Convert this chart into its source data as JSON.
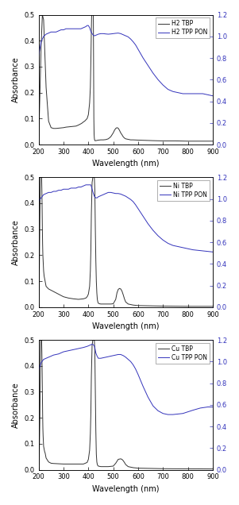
{
  "panels": [
    {
      "label1": "H2 TBP",
      "label2": "H2 TPP PON",
      "black_x": [
        200,
        210,
        215,
        220,
        230,
        240,
        250,
        260,
        270,
        280,
        290,
        300,
        310,
        320,
        330,
        340,
        350,
        360,
        370,
        375,
        380,
        385,
        390,
        395,
        400,
        405,
        408,
        410,
        412,
        413,
        414,
        415,
        416,
        417,
        418,
        419,
        420,
        421,
        422,
        423,
        424,
        425,
        426,
        427,
        428,
        429,
        430,
        435,
        440,
        450,
        460,
        470,
        480,
        490,
        500,
        505,
        510,
        515,
        520,
        525,
        530,
        535,
        540,
        545,
        550,
        560,
        570,
        580,
        600,
        630,
        660,
        700,
        750,
        800,
        850,
        900
      ],
      "black_y": [
        0.0,
        0.38,
        0.5,
        0.48,
        0.22,
        0.09,
        0.065,
        0.062,
        0.062,
        0.063,
        0.064,
        0.065,
        0.067,
        0.068,
        0.069,
        0.07,
        0.071,
        0.075,
        0.08,
        0.083,
        0.087,
        0.09,
        0.095,
        0.1,
        0.115,
        0.16,
        0.22,
        0.32,
        0.44,
        0.49,
        0.5,
        0.5,
        0.5,
        0.5,
        0.5,
        0.5,
        0.5,
        0.3,
        0.1,
        0.04,
        0.025,
        0.018,
        0.015,
        0.015,
        0.015,
        0.015,
        0.015,
        0.016,
        0.017,
        0.018,
        0.018,
        0.019,
        0.022,
        0.03,
        0.045,
        0.055,
        0.062,
        0.065,
        0.063,
        0.055,
        0.045,
        0.038,
        0.03,
        0.025,
        0.022,
        0.02,
        0.018,
        0.018,
        0.017,
        0.016,
        0.015,
        0.014,
        0.014,
        0.013,
        0.013,
        0.013
      ],
      "blue_x": [
        200,
        210,
        220,
        230,
        240,
        250,
        260,
        270,
        280,
        290,
        300,
        310,
        320,
        330,
        340,
        350,
        360,
        370,
        375,
        380,
        385,
        390,
        395,
        400,
        405,
        410,
        415,
        420,
        425,
        430,
        435,
        440,
        450,
        460,
        470,
        480,
        490,
        500,
        510,
        520,
        530,
        540,
        550,
        560,
        570,
        580,
        590,
        600,
        620,
        640,
        660,
        680,
        700,
        720,
        740,
        760,
        780,
        800,
        820,
        840,
        860,
        880,
        900
      ],
      "blue_y": [
        0.82,
        0.95,
        1.0,
        1.02,
        1.03,
        1.04,
        1.04,
        1.04,
        1.05,
        1.06,
        1.06,
        1.07,
        1.07,
        1.07,
        1.07,
        1.07,
        1.07,
        1.07,
        1.075,
        1.08,
        1.085,
        1.09,
        1.1,
        1.1,
        1.08,
        1.045,
        1.025,
        1.01,
        1.005,
        1.01,
        1.015,
        1.02,
        1.025,
        1.025,
        1.022,
        1.02,
        1.022,
        1.025,
        1.028,
        1.03,
        1.025,
        1.015,
        1.005,
        0.995,
        0.975,
        0.95,
        0.92,
        0.88,
        0.8,
        0.73,
        0.66,
        0.6,
        0.55,
        0.51,
        0.49,
        0.48,
        0.47,
        0.47,
        0.47,
        0.47,
        0.47,
        0.46,
        0.45
      ]
    },
    {
      "label1": "Ni TBP",
      "label2": "Ni TPP PON",
      "black_x": [
        200,
        203,
        205,
        207,
        208,
        209,
        210,
        211,
        212,
        213,
        214,
        215,
        216,
        217,
        218,
        219,
        220,
        222,
        224,
        226,
        228,
        230,
        240,
        250,
        260,
        280,
        300,
        320,
        340,
        360,
        380,
        390,
        395,
        400,
        405,
        408,
        410,
        412,
        415,
        418,
        420,
        422,
        424,
        426,
        428,
        430,
        432,
        434,
        436,
        438,
        440,
        445,
        450,
        460,
        470,
        480,
        490,
        500,
        510,
        515,
        520,
        525,
        530,
        535,
        540,
        545,
        550,
        560,
        580,
        600,
        700,
        800,
        900
      ],
      "black_y": [
        0.0,
        0.15,
        0.35,
        0.5,
        0.5,
        0.5,
        0.5,
        0.5,
        0.5,
        0.45,
        0.38,
        0.3,
        0.24,
        0.2,
        0.18,
        0.16,
        0.14,
        0.12,
        0.11,
        0.1,
        0.09,
        0.08,
        0.07,
        0.065,
        0.06,
        0.05,
        0.04,
        0.035,
        0.032,
        0.03,
        0.032,
        0.035,
        0.04,
        0.05,
        0.08,
        0.14,
        0.22,
        0.36,
        0.48,
        0.5,
        0.5,
        0.5,
        0.5,
        0.45,
        0.3,
        0.18,
        0.1,
        0.055,
        0.03,
        0.02,
        0.015,
        0.013,
        0.012,
        0.012,
        0.012,
        0.012,
        0.012,
        0.013,
        0.03,
        0.055,
        0.068,
        0.072,
        0.07,
        0.062,
        0.048,
        0.032,
        0.02,
        0.012,
        0.008,
        0.006,
        0.004,
        0.003,
        0.003
      ],
      "blue_x": [
        200,
        210,
        220,
        230,
        240,
        250,
        260,
        270,
        280,
        290,
        300,
        310,
        320,
        330,
        340,
        350,
        360,
        370,
        380,
        390,
        400,
        410,
        420,
        425,
        430,
        435,
        440,
        450,
        460,
        470,
        480,
        490,
        500,
        510,
        520,
        530,
        535,
        540,
        545,
        550,
        560,
        570,
        580,
        590,
        600,
        620,
        640,
        660,
        680,
        700,
        720,
        740,
        760,
        780,
        800,
        820,
        860,
        900
      ],
      "blue_y": [
        0.98,
        1.01,
        1.04,
        1.05,
        1.06,
        1.06,
        1.07,
        1.07,
        1.08,
        1.08,
        1.09,
        1.09,
        1.09,
        1.1,
        1.1,
        1.1,
        1.11,
        1.11,
        1.12,
        1.13,
        1.13,
        1.13,
        1.05,
        1.02,
        1.01,
        1.01,
        1.02,
        1.03,
        1.04,
        1.05,
        1.06,
        1.06,
        1.055,
        1.05,
        1.05,
        1.045,
        1.04,
        1.035,
        1.03,
        1.025,
        1.01,
        0.995,
        0.975,
        0.945,
        0.91,
        0.84,
        0.77,
        0.71,
        0.66,
        0.62,
        0.59,
        0.57,
        0.56,
        0.55,
        0.54,
        0.53,
        0.52,
        0.51
      ]
    },
    {
      "label1": "Cu TBP",
      "label2": "Cu TPP PON",
      "black_x": [
        200,
        203,
        205,
        207,
        208,
        209,
        210,
        211,
        212,
        213,
        214,
        215,
        216,
        217,
        218,
        219,
        220,
        222,
        224,
        226,
        228,
        230,
        240,
        250,
        260,
        280,
        300,
        340,
        380,
        395,
        400,
        405,
        408,
        410,
        412,
        415,
        418,
        420,
        422,
        424,
        426,
        428,
        430,
        432,
        434,
        436,
        438,
        440,
        450,
        460,
        480,
        500,
        510,
        520,
        530,
        535,
        540,
        545,
        550,
        560,
        580,
        600,
        700,
        900
      ],
      "black_y": [
        0.0,
        0.08,
        0.2,
        0.4,
        0.5,
        0.5,
        0.5,
        0.5,
        0.5,
        0.45,
        0.38,
        0.3,
        0.22,
        0.16,
        0.13,
        0.11,
        0.09,
        0.08,
        0.07,
        0.065,
        0.055,
        0.045,
        0.03,
        0.025,
        0.024,
        0.023,
        0.022,
        0.022,
        0.022,
        0.028,
        0.04,
        0.075,
        0.14,
        0.22,
        0.36,
        0.48,
        0.5,
        0.5,
        0.5,
        0.5,
        0.45,
        0.3,
        0.15,
        0.06,
        0.03,
        0.02,
        0.016,
        0.014,
        0.012,
        0.012,
        0.012,
        0.014,
        0.025,
        0.04,
        0.042,
        0.04,
        0.035,
        0.028,
        0.02,
        0.012,
        0.008,
        0.006,
        0.004,
        0.003
      ],
      "blue_x": [
        200,
        210,
        220,
        230,
        240,
        250,
        260,
        280,
        300,
        320,
        340,
        360,
        380,
        395,
        405,
        415,
        420,
        425,
        430,
        435,
        440,
        450,
        460,
        470,
        480,
        490,
        500,
        510,
        520,
        530,
        535,
        540,
        545,
        550,
        560,
        570,
        580,
        590,
        600,
        620,
        640,
        660,
        680,
        700,
        720,
        740,
        760,
        780,
        800,
        820,
        850,
        880,
        900
      ],
      "blue_y": [
        0.92,
        0.99,
        1.02,
        1.03,
        1.04,
        1.05,
        1.06,
        1.07,
        1.09,
        1.1,
        1.11,
        1.12,
        1.13,
        1.14,
        1.15,
        1.16,
        1.155,
        1.14,
        1.08,
        1.05,
        1.03,
        1.03,
        1.035,
        1.04,
        1.045,
        1.05,
        1.055,
        1.06,
        1.065,
        1.065,
        1.06,
        1.055,
        1.048,
        1.04,
        1.02,
        1.0,
        0.97,
        0.93,
        0.88,
        0.77,
        0.67,
        0.59,
        0.545,
        0.52,
        0.51,
        0.51,
        0.515,
        0.52,
        0.535,
        0.55,
        0.57,
        0.58,
        0.58
      ]
    }
  ],
  "xlim": [
    200,
    900
  ],
  "ylim_left": [
    0.0,
    0.5
  ],
  "ylim_right": [
    0.0,
    1.2
  ],
  "yticks_left": [
    0.0,
    0.1,
    0.2,
    0.3,
    0.4,
    0.5
  ],
  "yticks_right": [
    0.0,
    0.2,
    0.4,
    0.6,
    0.8,
    1.0,
    1.2
  ],
  "xticks": [
    200,
    300,
    400,
    500,
    600,
    700,
    800,
    900
  ],
  "xlabel": "Wavelength (nm)",
  "ylabel": "Absorbance",
  "black_color": "#333333",
  "blue_color": "#3333bb",
  "bg_color": "#ffffff"
}
